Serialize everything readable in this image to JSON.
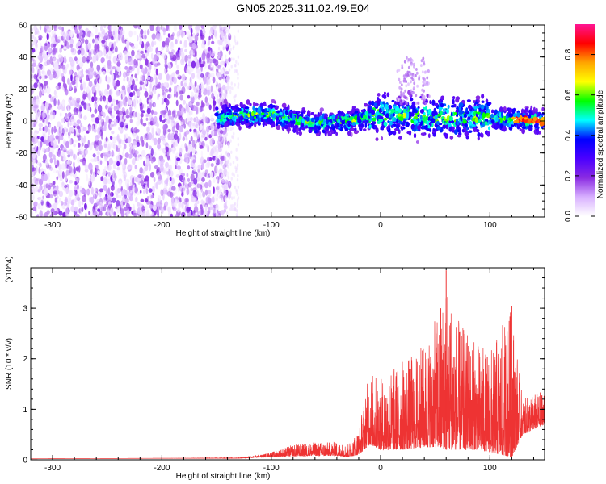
{
  "title": "GN05.2025.311.02.49.E04",
  "chart_data": [
    {
      "type": "heatmap",
      "title": "GN05.2025.311.02.49.E04",
      "xlabel": "Height of straight line (km)",
      "ylabel": "Frequency (Hz)",
      "xlim": [
        -320,
        150
      ],
      "ylim": [
        -60,
        60
      ],
      "x_ticks": [
        -300,
        -200,
        -100,
        0,
        100
      ],
      "y_ticks": [
        -60,
        -40,
        -20,
        0,
        20,
        40,
        60
      ],
      "colorbar": {
        "label": "Normalized spectral amplitude",
        "range": [
          0.0,
          0.95
        ],
        "ticks": [
          0.0,
          0.2,
          0.4,
          0.6,
          0.8
        ],
        "tick_labels": [
          "0.0",
          "0.2",
          "0.4",
          "0.6",
          "0.8"
        ],
        "colormap": [
          "#ffffff",
          "#d8b0ff",
          "#8a2be2",
          "#4b00ff",
          "#0000ff",
          "#00ffff",
          "#00ff00",
          "#ffff00",
          "#ffa500",
          "#ff0000",
          "#ff1493"
        ]
      },
      "features": {
        "noise_region_x": [
          -320,
          -150
        ],
        "noise_amplitude": [
          0.0,
          0.2
        ],
        "signal_band_x": [
          -150,
          150
        ],
        "signal_band_center_freq": [
          [
            -150,
            3
          ],
          [
            -100,
            4
          ],
          [
            -60,
            -2
          ],
          [
            -30,
            0
          ],
          [
            0,
            4
          ],
          [
            50,
            2
          ],
          [
            100,
            2
          ],
          [
            150,
            0
          ]
        ],
        "signal_band_halfwidth_hz": 10,
        "peak_x": [
          120,
          145
        ],
        "peak_freq": 0,
        "peak_amplitude": 0.9
      }
    },
    {
      "type": "line",
      "xlabel": "Height of straight line (km)",
      "ylabel": "SNR (10 * v/v)",
      "y_multiplier": "(x10^4)",
      "xlim": [
        -320,
        150
      ],
      "ylim": [
        0,
        3.8
      ],
      "x_ticks": [
        -300,
        -200,
        -100,
        0,
        100
      ],
      "y_ticks": [
        0,
        1,
        2,
        3
      ],
      "series": [
        {
          "color": "#ee3333",
          "envelope": {
            "x": [
              -320,
              -200,
              -130,
              -110,
              -100,
              -80,
              -60,
              -40,
              -30,
              -20,
              -10,
              0,
              20,
              40,
              55,
              60,
              70,
              80,
              90,
              100,
              110,
              120,
              130,
              150
            ],
            "min": [
              0.02,
              0.03,
              0.03,
              0.05,
              0.06,
              0.07,
              0.08,
              0.08,
              0.05,
              0.1,
              0.3,
              0.2,
              0.2,
              0.25,
              0.25,
              0.2,
              0.2,
              0.2,
              0.2,
              0.15,
              0.1,
              0.05,
              0.5,
              0.7
            ],
            "max": [
              0.02,
              0.03,
              0.04,
              0.1,
              0.15,
              0.3,
              0.35,
              0.35,
              0.3,
              0.6,
              1.8,
              1.6,
              2.0,
              2.3,
              3.0,
              3.75,
              2.8,
              2.5,
              2.3,
              2.2,
              2.6,
              3.05,
              1.2,
              1.4
            ]
          }
        }
      ]
    }
  ]
}
